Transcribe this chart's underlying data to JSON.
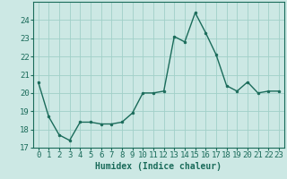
{
  "x": [
    0,
    1,
    2,
    3,
    4,
    5,
    6,
    7,
    8,
    9,
    10,
    11,
    12,
    13,
    14,
    15,
    16,
    17,
    18,
    19,
    20,
    21,
    22,
    23
  ],
  "y": [
    20.6,
    18.7,
    17.7,
    17.4,
    18.4,
    18.4,
    18.3,
    18.3,
    18.4,
    18.9,
    20.0,
    20.0,
    20.1,
    23.1,
    22.8,
    24.4,
    23.3,
    22.1,
    20.4,
    20.1,
    20.6,
    20.0,
    20.1,
    20.1
  ],
  "line_color": "#1a6b5a",
  "marker": "o",
  "marker_size": 2,
  "line_width": 1.0,
  "xlabel": "Humidex (Indice chaleur)",
  "xlabel_fontsize": 7,
  "ylim": [
    17,
    25
  ],
  "xlim": [
    -0.5,
    23.5
  ],
  "yticks": [
    17,
    18,
    19,
    20,
    21,
    22,
    23,
    24
  ],
  "xticks": [
    0,
    1,
    2,
    3,
    4,
    5,
    6,
    7,
    8,
    9,
    10,
    11,
    12,
    13,
    14,
    15,
    16,
    17,
    18,
    19,
    20,
    21,
    22,
    23
  ],
  "grid_color": "#a0d0c8",
  "background_color": "#cce8e4",
  "tick_fontsize": 6.5,
  "tick_color": "#1a6b5a",
  "spine_color": "#1a6b5a"
}
